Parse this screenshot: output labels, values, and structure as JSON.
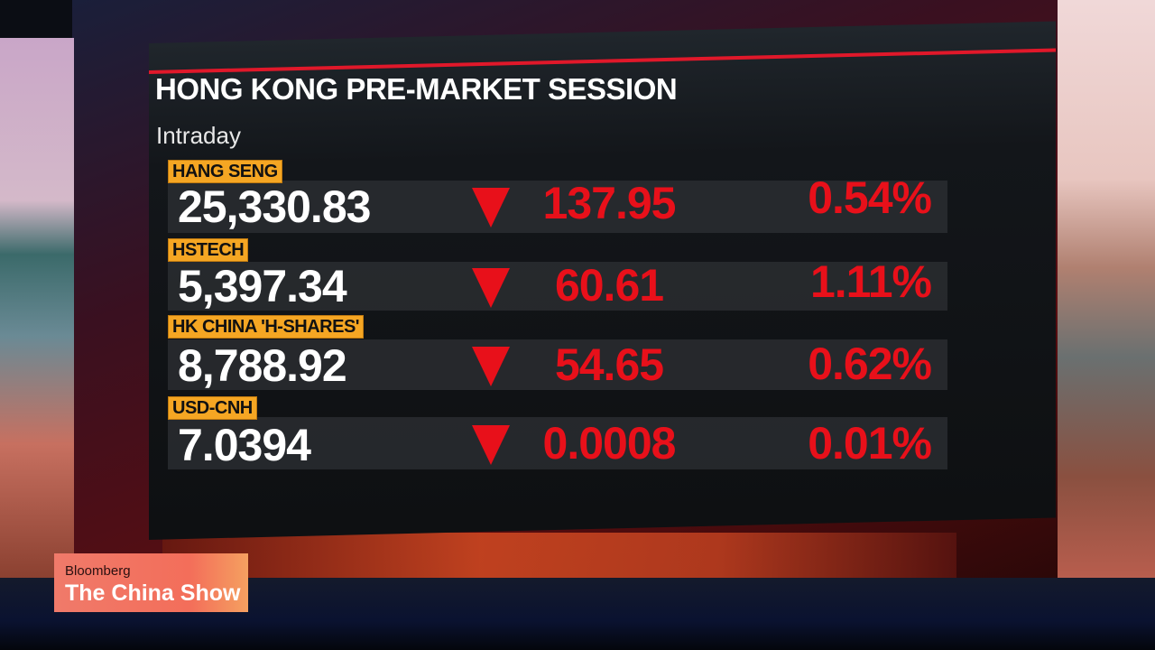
{
  "header": {
    "title": "HONG KONG PRE-MARKET SESSION",
    "subtitle": "Intraday"
  },
  "colors": {
    "down": "#e8101a",
    "tag": "#f5a623",
    "accent_line": "#e0182a"
  },
  "rows": [
    {
      "name": "HANG SENG",
      "price": "25,330.83",
      "direction": "down",
      "change": "137.95",
      "percent": "0.54%"
    },
    {
      "name": "HSTECH",
      "price": "5,397.34",
      "direction": "down",
      "change": "60.61",
      "percent": "1.11%"
    },
    {
      "name": "HK CHINA 'H-SHARES'",
      "price": "8,788.92",
      "direction": "down",
      "change": "54.65",
      "percent": "0.62%"
    },
    {
      "name": "USD-CNH",
      "price": "7.0394",
      "direction": "down",
      "change": "0.0008",
      "percent": "0.01%"
    }
  ],
  "branding": {
    "network": "Bloomberg",
    "show": "The China Show"
  }
}
